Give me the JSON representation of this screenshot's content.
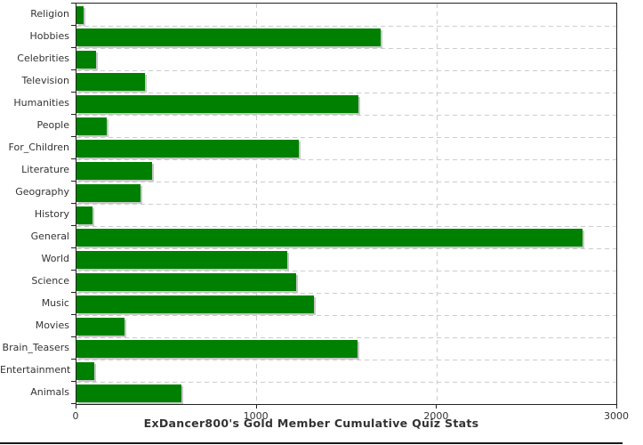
{
  "chart_data": {
    "type": "bar",
    "orientation": "horizontal",
    "title": "ExDancer800's Gold Member Cumulative Quiz Stats",
    "categories": [
      "Religion",
      "Hobbies",
      "Celebrities",
      "Television",
      "Humanities",
      "People",
      "For_Children",
      "Literature",
      "Geography",
      "History",
      "General",
      "World",
      "Science",
      "Music",
      "Movies",
      "Brain_Teasers",
      "Entertainment",
      "Animals"
    ],
    "values": [
      40,
      1690,
      110,
      380,
      1565,
      170,
      1235,
      420,
      355,
      90,
      2810,
      1170,
      1220,
      1320,
      265,
      1560,
      100,
      585
    ],
    "xlabel": "",
    "ylabel": "",
    "xlim": [
      0,
      3000
    ],
    "x_ticks": [
      0,
      1000,
      2000,
      3000
    ],
    "grid": "dashed",
    "legend": "none",
    "bar_color": "#008000",
    "shadow_color": "#c8c8c8",
    "gridline_color": "#cccccc",
    "axis_color": "#222222",
    "text_color": "#333333"
  }
}
